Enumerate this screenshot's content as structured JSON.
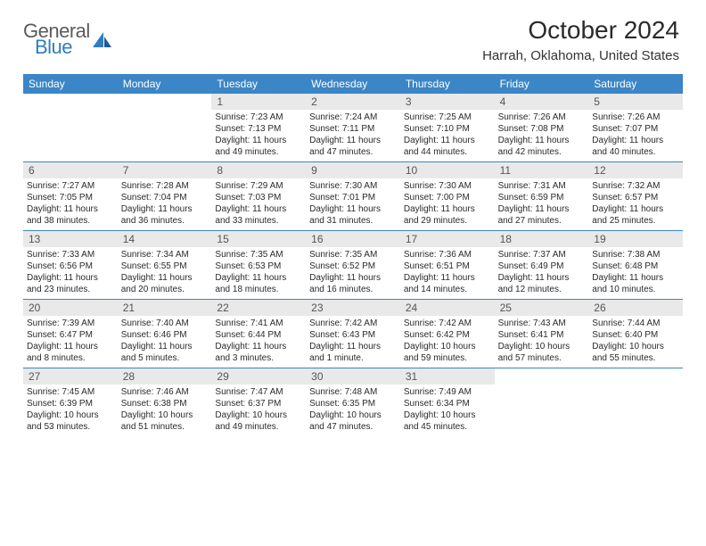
{
  "logo": {
    "part1": "General",
    "part2": "Blue"
  },
  "title": "October 2024",
  "location": "Harrah, Oklahoma, United States",
  "colors": {
    "header_bg": "#3b86c6",
    "header_text": "#ffffff",
    "daynum_bg": "#e9e9e9",
    "daynum_text": "#555555",
    "body_text": "#2a2a2a",
    "rule": "#3b86c6",
    "logo_gray": "#5b5b5b",
    "logo_blue": "#2f7dc1"
  },
  "weekdays": [
    "Sunday",
    "Monday",
    "Tuesday",
    "Wednesday",
    "Thursday",
    "Friday",
    "Saturday"
  ],
  "weeks": [
    [
      {
        "empty": true
      },
      {
        "empty": true
      },
      {
        "num": "1",
        "sunrise": "Sunrise: 7:23 AM",
        "sunset": "Sunset: 7:13 PM",
        "daylight": "Daylight: 11 hours and 49 minutes."
      },
      {
        "num": "2",
        "sunrise": "Sunrise: 7:24 AM",
        "sunset": "Sunset: 7:11 PM",
        "daylight": "Daylight: 11 hours and 47 minutes."
      },
      {
        "num": "3",
        "sunrise": "Sunrise: 7:25 AM",
        "sunset": "Sunset: 7:10 PM",
        "daylight": "Daylight: 11 hours and 44 minutes."
      },
      {
        "num": "4",
        "sunrise": "Sunrise: 7:26 AM",
        "sunset": "Sunset: 7:08 PM",
        "daylight": "Daylight: 11 hours and 42 minutes."
      },
      {
        "num": "5",
        "sunrise": "Sunrise: 7:26 AM",
        "sunset": "Sunset: 7:07 PM",
        "daylight": "Daylight: 11 hours and 40 minutes."
      }
    ],
    [
      {
        "num": "6",
        "sunrise": "Sunrise: 7:27 AM",
        "sunset": "Sunset: 7:05 PM",
        "daylight": "Daylight: 11 hours and 38 minutes."
      },
      {
        "num": "7",
        "sunrise": "Sunrise: 7:28 AM",
        "sunset": "Sunset: 7:04 PM",
        "daylight": "Daylight: 11 hours and 36 minutes."
      },
      {
        "num": "8",
        "sunrise": "Sunrise: 7:29 AM",
        "sunset": "Sunset: 7:03 PM",
        "daylight": "Daylight: 11 hours and 33 minutes."
      },
      {
        "num": "9",
        "sunrise": "Sunrise: 7:30 AM",
        "sunset": "Sunset: 7:01 PM",
        "daylight": "Daylight: 11 hours and 31 minutes."
      },
      {
        "num": "10",
        "sunrise": "Sunrise: 7:30 AM",
        "sunset": "Sunset: 7:00 PM",
        "daylight": "Daylight: 11 hours and 29 minutes."
      },
      {
        "num": "11",
        "sunrise": "Sunrise: 7:31 AM",
        "sunset": "Sunset: 6:59 PM",
        "daylight": "Daylight: 11 hours and 27 minutes."
      },
      {
        "num": "12",
        "sunrise": "Sunrise: 7:32 AM",
        "sunset": "Sunset: 6:57 PM",
        "daylight": "Daylight: 11 hours and 25 minutes."
      }
    ],
    [
      {
        "num": "13",
        "sunrise": "Sunrise: 7:33 AM",
        "sunset": "Sunset: 6:56 PM",
        "daylight": "Daylight: 11 hours and 23 minutes."
      },
      {
        "num": "14",
        "sunrise": "Sunrise: 7:34 AM",
        "sunset": "Sunset: 6:55 PM",
        "daylight": "Daylight: 11 hours and 20 minutes."
      },
      {
        "num": "15",
        "sunrise": "Sunrise: 7:35 AM",
        "sunset": "Sunset: 6:53 PM",
        "daylight": "Daylight: 11 hours and 18 minutes."
      },
      {
        "num": "16",
        "sunrise": "Sunrise: 7:35 AM",
        "sunset": "Sunset: 6:52 PM",
        "daylight": "Daylight: 11 hours and 16 minutes."
      },
      {
        "num": "17",
        "sunrise": "Sunrise: 7:36 AM",
        "sunset": "Sunset: 6:51 PM",
        "daylight": "Daylight: 11 hours and 14 minutes."
      },
      {
        "num": "18",
        "sunrise": "Sunrise: 7:37 AM",
        "sunset": "Sunset: 6:49 PM",
        "daylight": "Daylight: 11 hours and 12 minutes."
      },
      {
        "num": "19",
        "sunrise": "Sunrise: 7:38 AM",
        "sunset": "Sunset: 6:48 PM",
        "daylight": "Daylight: 11 hours and 10 minutes."
      }
    ],
    [
      {
        "num": "20",
        "sunrise": "Sunrise: 7:39 AM",
        "sunset": "Sunset: 6:47 PM",
        "daylight": "Daylight: 11 hours and 8 minutes."
      },
      {
        "num": "21",
        "sunrise": "Sunrise: 7:40 AM",
        "sunset": "Sunset: 6:46 PM",
        "daylight": "Daylight: 11 hours and 5 minutes."
      },
      {
        "num": "22",
        "sunrise": "Sunrise: 7:41 AM",
        "sunset": "Sunset: 6:44 PM",
        "daylight": "Daylight: 11 hours and 3 minutes."
      },
      {
        "num": "23",
        "sunrise": "Sunrise: 7:42 AM",
        "sunset": "Sunset: 6:43 PM",
        "daylight": "Daylight: 11 hours and 1 minute."
      },
      {
        "num": "24",
        "sunrise": "Sunrise: 7:42 AM",
        "sunset": "Sunset: 6:42 PM",
        "daylight": "Daylight: 10 hours and 59 minutes."
      },
      {
        "num": "25",
        "sunrise": "Sunrise: 7:43 AM",
        "sunset": "Sunset: 6:41 PM",
        "daylight": "Daylight: 10 hours and 57 minutes."
      },
      {
        "num": "26",
        "sunrise": "Sunrise: 7:44 AM",
        "sunset": "Sunset: 6:40 PM",
        "daylight": "Daylight: 10 hours and 55 minutes."
      }
    ],
    [
      {
        "num": "27",
        "sunrise": "Sunrise: 7:45 AM",
        "sunset": "Sunset: 6:39 PM",
        "daylight": "Daylight: 10 hours and 53 minutes."
      },
      {
        "num": "28",
        "sunrise": "Sunrise: 7:46 AM",
        "sunset": "Sunset: 6:38 PM",
        "daylight": "Daylight: 10 hours and 51 minutes."
      },
      {
        "num": "29",
        "sunrise": "Sunrise: 7:47 AM",
        "sunset": "Sunset: 6:37 PM",
        "daylight": "Daylight: 10 hours and 49 minutes."
      },
      {
        "num": "30",
        "sunrise": "Sunrise: 7:48 AM",
        "sunset": "Sunset: 6:35 PM",
        "daylight": "Daylight: 10 hours and 47 minutes."
      },
      {
        "num": "31",
        "sunrise": "Sunrise: 7:49 AM",
        "sunset": "Sunset: 6:34 PM",
        "daylight": "Daylight: 10 hours and 45 minutes."
      },
      {
        "empty": true
      },
      {
        "empty": true
      }
    ]
  ]
}
